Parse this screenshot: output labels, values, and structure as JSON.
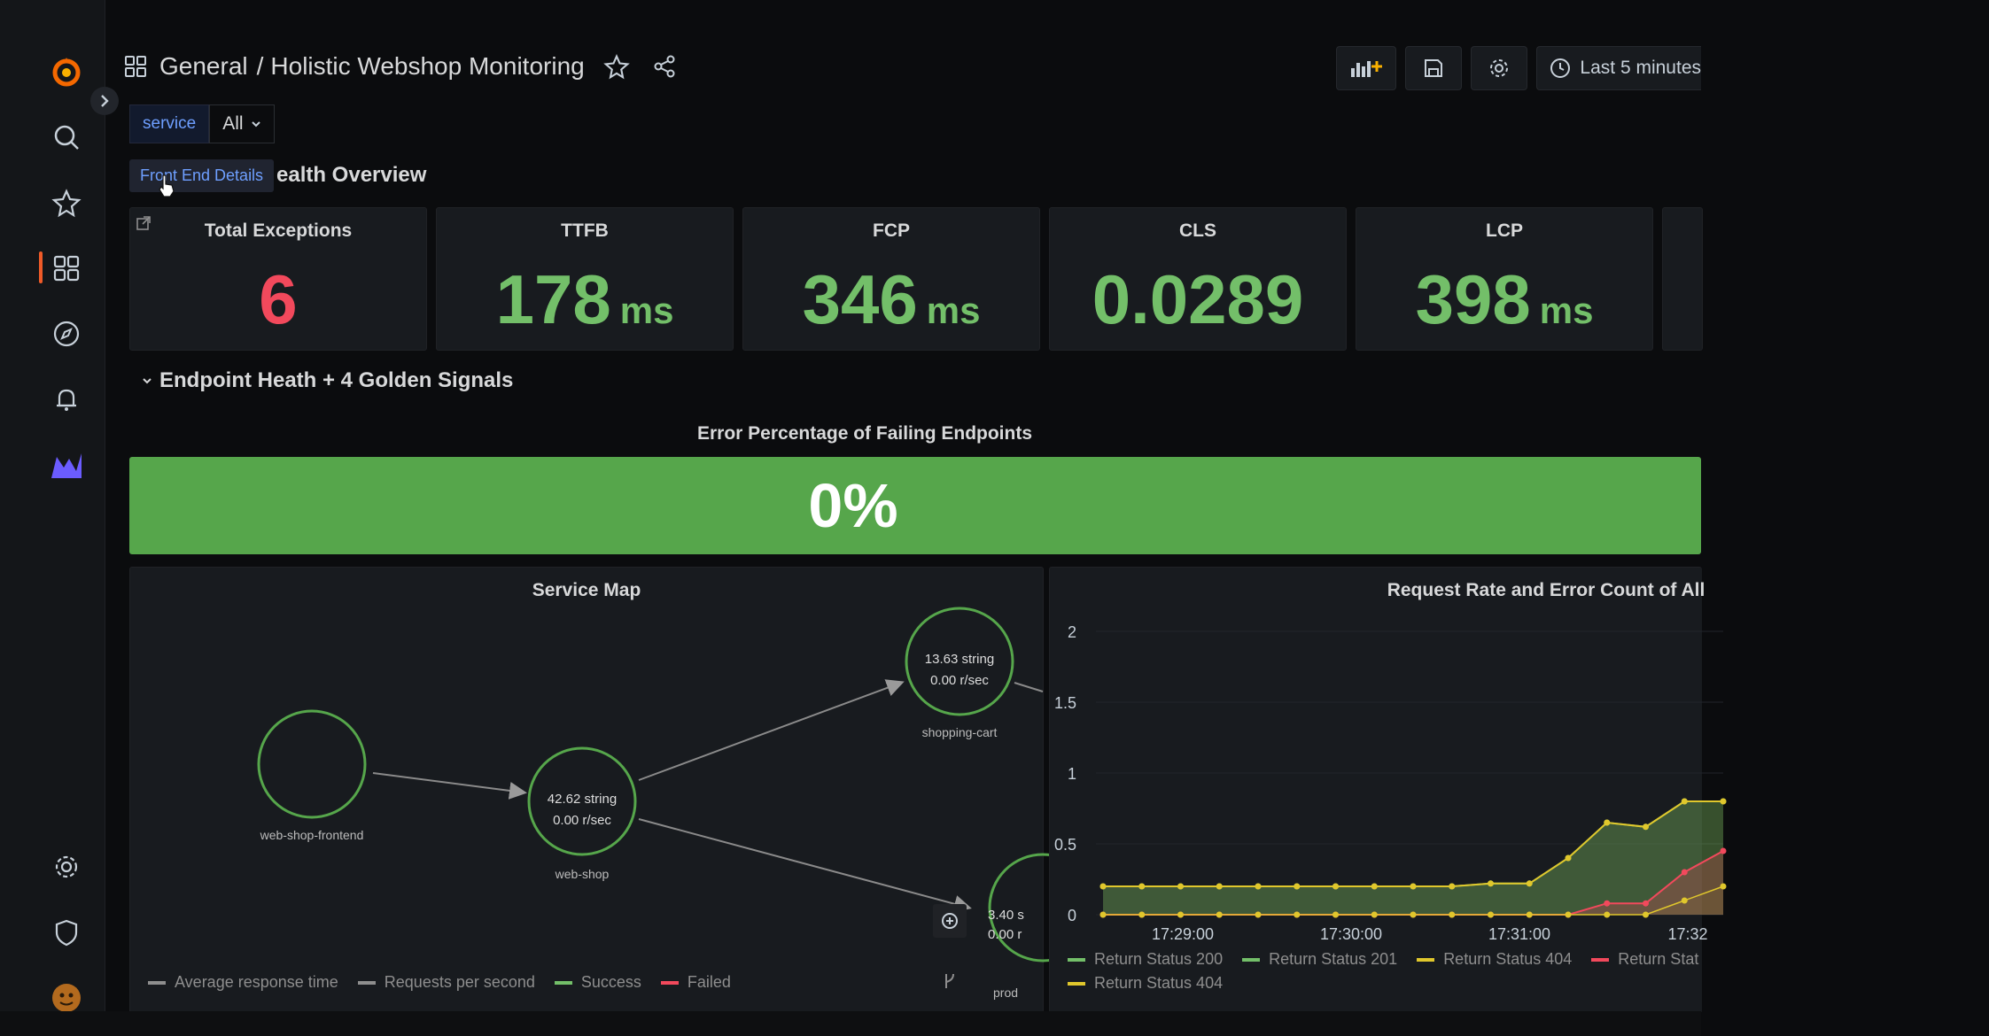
{
  "breadcrumb": {
    "folder": "General",
    "separator": "/",
    "dashboard": "Holistic Webshop Monitoring"
  },
  "toolbar": {
    "time_range": "Last 5 minutes"
  },
  "variables": {
    "service_label": "service",
    "service_value": "All"
  },
  "tooltip": "Front End Details",
  "section1": {
    "title_partial": "ealth Overview"
  },
  "stats": [
    {
      "title": "Total Exceptions",
      "value": "6",
      "unit": "",
      "color": "#f2495c"
    },
    {
      "title": "TTFB",
      "value": "178",
      "unit": "ms",
      "color": "#73bf69"
    },
    {
      "title": "FCP",
      "value": "346",
      "unit": "ms",
      "color": "#73bf69"
    },
    {
      "title": "CLS",
      "value": "0.0289",
      "unit": "",
      "color": "#73bf69"
    },
    {
      "title": "LCP",
      "value": "398",
      "unit": "ms",
      "color": "#73bf69"
    }
  ],
  "section2": {
    "title": "Endpoint Heath + 4 Golden Signals"
  },
  "error_gauge": {
    "title": "Error Percentage of Failing Endpoints",
    "value": "0%",
    "color": "#56a64b"
  },
  "service_map": {
    "title": "Service Map",
    "nodes": [
      {
        "id": "web-shop-frontend",
        "label": "web-shop-frontend",
        "line1": "",
        "line2": ""
      },
      {
        "id": "web-shop",
        "label": "web-shop",
        "line1": "42.62 string",
        "line2": "0.00 r/sec"
      },
      {
        "id": "shopping-cart",
        "label": "shopping-cart",
        "line1": "13.63 string",
        "line2": "0.00 r/sec"
      },
      {
        "id": "products",
        "label": "prod",
        "line1": "3.40 s",
        "line2": "0.00 r"
      }
    ],
    "legend": [
      {
        "label": "Average response time",
        "color": "#8e8e8e"
      },
      {
        "label": "Requests per second",
        "color": "#8e8e8e"
      },
      {
        "label": "Success",
        "color": "#73bf69"
      },
      {
        "label": "Failed",
        "color": "#f2495c"
      }
    ]
  },
  "chart_data": {
    "type": "area",
    "title": "Request Rate and Error Count of All",
    "ylim": [
      0,
      2
    ],
    "yticks": [
      "2",
      "1.5",
      "1",
      "0.5",
      "0"
    ],
    "xticks": [
      "17:29:00",
      "17:30:00",
      "17:31:00",
      "17:32"
    ],
    "series": [
      {
        "name": "Return Status 200",
        "color": "#73bf69",
        "values": [
          0.2,
          0.2,
          0.2,
          0.2,
          0.2,
          0.2,
          0.2,
          0.2,
          0.2,
          0.2,
          0.22,
          0.22,
          0.4,
          0.65,
          0.62,
          0.8,
          0.8
        ]
      },
      {
        "name": "Return Status 201",
        "color": "#73bf69",
        "values": [
          0.2,
          0.2,
          0.2,
          0.2,
          0.2,
          0.2,
          0.2,
          0.2,
          0.2,
          0.2,
          0.22,
          0.22,
          0.4,
          0.65,
          0.62,
          0.8,
          0.8
        ]
      },
      {
        "name": "Return Status 404",
        "color": "#e0c72c",
        "values": [
          0.2,
          0.2,
          0.2,
          0.2,
          0.2,
          0.2,
          0.2,
          0.2,
          0.2,
          0.2,
          0.22,
          0.22,
          0.4,
          0.65,
          0.62,
          0.8,
          0.8
        ]
      },
      {
        "name": "Return Stat",
        "color": "#f2495c",
        "values": [
          0,
          0,
          0,
          0,
          0,
          0,
          0,
          0,
          0,
          0,
          0,
          0,
          0,
          0.08,
          0.08,
          0.3,
          0.45
        ]
      },
      {
        "name": "Return Status 404",
        "color": "#e0c72c",
        "values": [
          0,
          0,
          0,
          0,
          0,
          0,
          0,
          0,
          0,
          0,
          0,
          0,
          0,
          0,
          0,
          0.1,
          0.2
        ]
      }
    ]
  }
}
